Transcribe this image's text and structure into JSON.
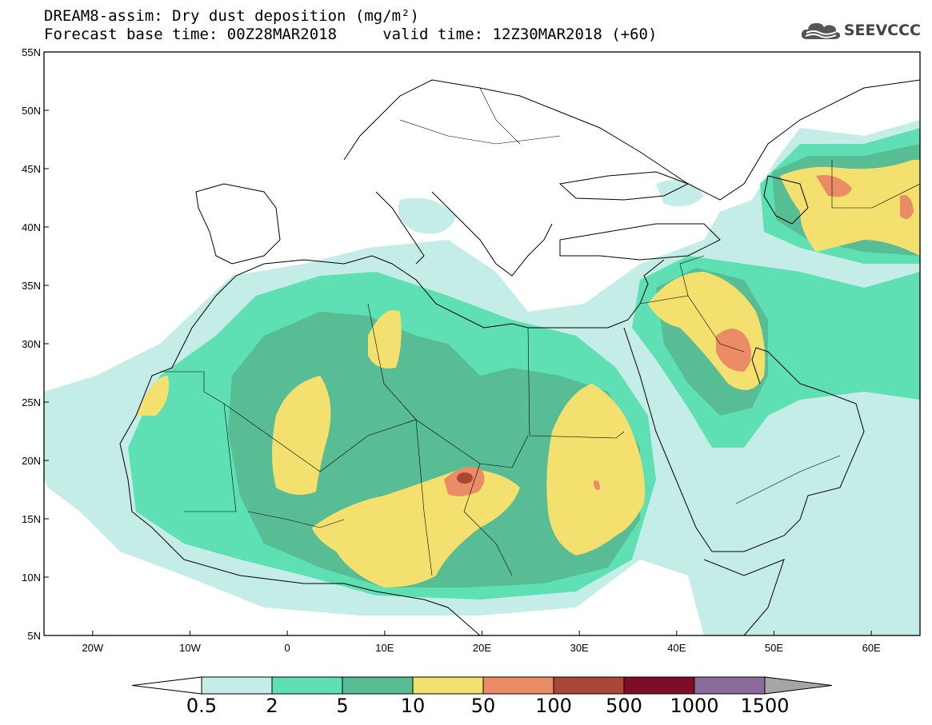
{
  "title": {
    "line1": "DREAM8-assim: Dry dust deposition (mg/m²)",
    "line2": "Forecast base time: 00Z28MAR2018     valid time: 12Z30MAR2018 (+60)"
  },
  "logo": {
    "text": "SEEVCCC",
    "icon": "cloud-logo-icon"
  },
  "map": {
    "lon_range": [
      -25,
      65
    ],
    "lat_range": [
      5,
      55
    ],
    "lat_ticks": [
      "55N",
      "50N",
      "45N",
      "40N",
      "35N",
      "30N",
      "25N",
      "20N",
      "15N",
      "10N",
      "5N"
    ],
    "lon_ticks": [
      "20W",
      "10W",
      "0",
      "10E",
      "20E",
      "30E",
      "40E",
      "50E",
      "60E"
    ]
  },
  "colorbar": {
    "colors": [
      "#c3ede6",
      "#5ee0b4",
      "#58bc94",
      "#f3e06f",
      "#ea8c65",
      "#a94736",
      "#7f0d29",
      "#8a6b9c"
    ],
    "under_color": "#ffffff",
    "over_color": "#a6a6a6",
    "labels": [
      "0.5",
      "2",
      "5",
      "10",
      "50",
      "100",
      "500",
      "1000",
      "1500"
    ]
  }
}
